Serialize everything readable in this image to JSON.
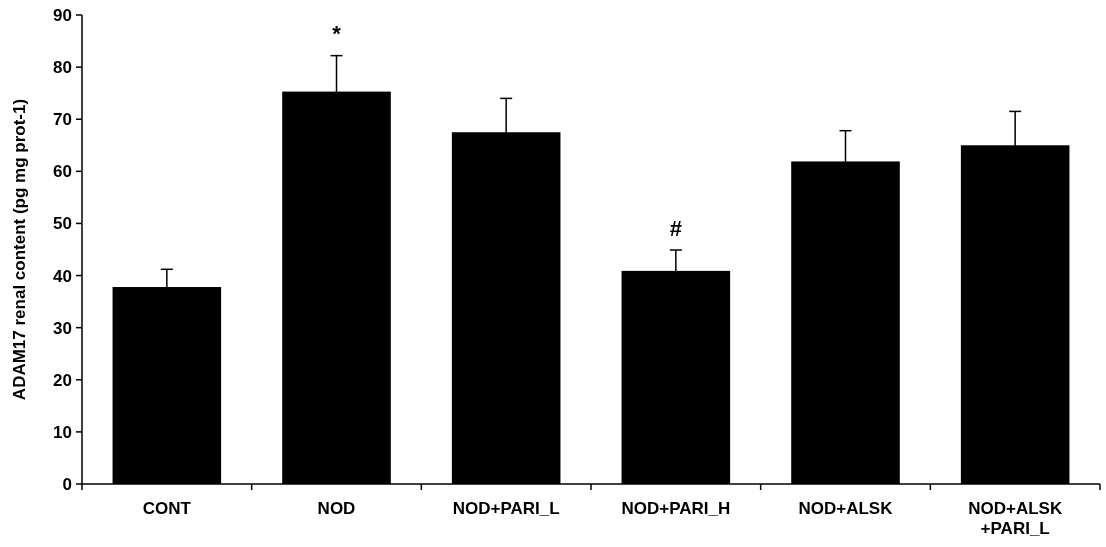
{
  "chart_data": {
    "type": "bar",
    "ylabel": "ADAM17 renal content (pg mg prot-1)",
    "categories": [
      "CONT",
      "NOD",
      "NOD+PARI_L",
      "NOD+PARI_H",
      "NOD+ALSK",
      "NOD+ALSK +PARI_L"
    ],
    "values": [
      37.8,
      75.3,
      67.5,
      40.9,
      61.9,
      65.0
    ],
    "errors": [
      3.4,
      6.9,
      6.5,
      4.0,
      5.9,
      6.5
    ],
    "color": "#000000",
    "ylim": [
      0,
      90
    ],
    "yticks": [
      0,
      10,
      20,
      30,
      40,
      50,
      60,
      70,
      80,
      90
    ],
    "annotations": [
      {
        "text": "*",
        "x": "NOD",
        "y": 82.2
      },
      {
        "text": "#",
        "x": "NOD+PARI_H",
        "y": 44.9
      }
    ]
  }
}
